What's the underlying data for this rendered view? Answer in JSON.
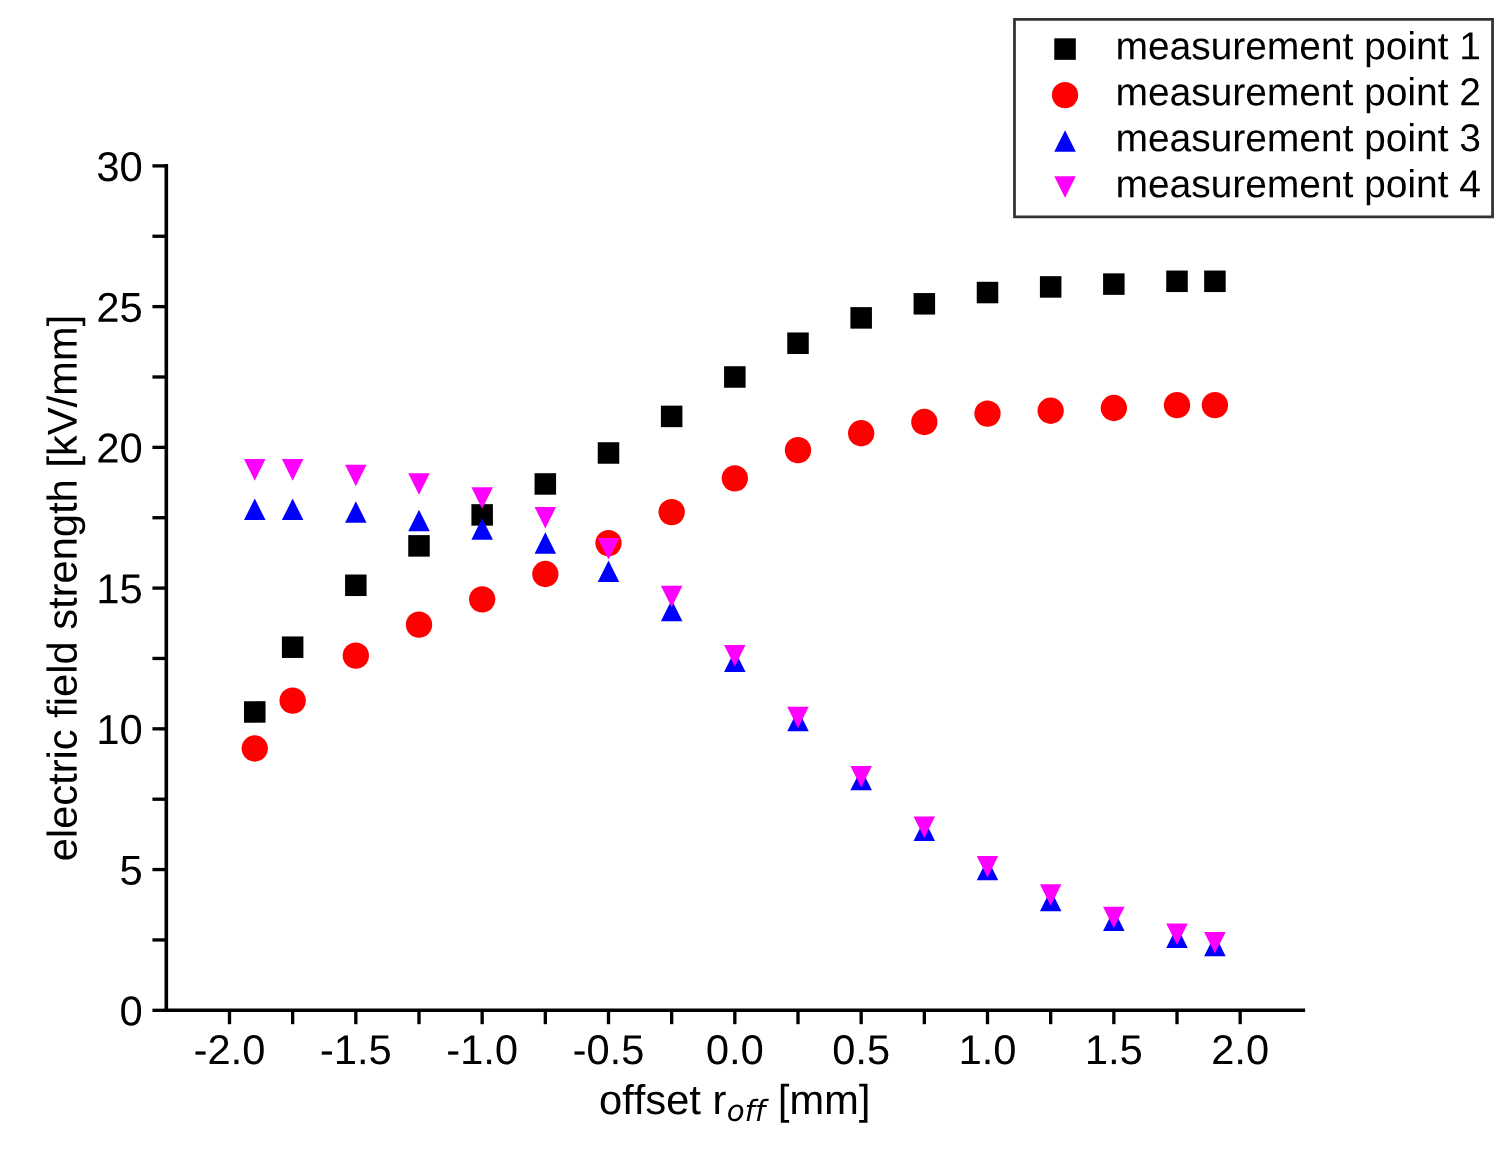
{
  "chart_data": {
    "type": "scatter",
    "xlabel": "offset r$_{off}$ [mm]",
    "ylabel": "electric field strength [kV/mm]",
    "x": [
      -1.9,
      -1.75,
      -1.5,
      -1.25,
      -1.0,
      -0.75,
      -0.5,
      -0.25,
      0,
      0.25,
      0.5,
      0.75,
      1.0,
      1.25,
      1.5,
      1.75,
      1.9
    ],
    "series": [
      {
        "name": "measurement point 1",
        "color": "#000000",
        "marker": "square",
        "values": [
          10.6,
          12.9,
          15.1,
          16.5,
          17.6,
          18.7,
          19.8,
          21.1,
          22.5,
          23.7,
          24.6,
          25.1,
          25.5,
          25.7,
          25.8,
          25.9,
          25.9
        ]
      },
      {
        "name": "measurement point 2",
        "color": "#ff0000",
        "marker": "circle",
        "values": [
          9.3,
          11.0,
          12.6,
          13.7,
          14.6,
          15.5,
          16.6,
          17.7,
          18.9,
          19.9,
          20.5,
          20.9,
          21.2,
          21.3,
          21.4,
          21.5,
          21.5
        ]
      },
      {
        "name": "measurement point 3",
        "color": "#0000ff",
        "marker": "triangle",
        "values": [
          17.8,
          17.8,
          17.7,
          17.4,
          17.1,
          16.6,
          15.6,
          14.2,
          12.4,
          10.3,
          8.2,
          6.4,
          5.0,
          3.9,
          3.2,
          2.6,
          2.3
        ]
      },
      {
        "name": "measurement point 4",
        "color": "#ff00ff",
        "marker": "triangle_down",
        "values": [
          19.2,
          19.2,
          19.0,
          18.7,
          18.2,
          17.5,
          16.4,
          14.7,
          12.6,
          10.4,
          8.3,
          6.5,
          5.1,
          4.1,
          3.3,
          2.7,
          2.4
        ]
      }
    ],
    "xlim": [
      -2.25,
      2.25
    ],
    "xticks": [
      {
        "value": -2.0,
        "label": "-2.0"
      },
      {
        "value": -1.75,
        "label": null
      },
      {
        "value": -1.5,
        "label": "-1.5"
      },
      {
        "value": -1.25,
        "label": null
      },
      {
        "value": -1.0,
        "label": "-1.0"
      },
      {
        "value": -0.75,
        "label": null
      },
      {
        "value": -0.5,
        "label": "-0.5"
      },
      {
        "value": -0.25,
        "label": null
      },
      {
        "value": 0,
        "label": "0.0"
      },
      {
        "value": 0.25,
        "label": null
      },
      {
        "value": 0.5,
        "label": "0.5"
      },
      {
        "value": 0.75,
        "label": null
      },
      {
        "value": 1.0,
        "label": "1.0"
      },
      {
        "value": 1.25,
        "label": null
      },
      {
        "value": 1.5,
        "label": "1.5"
      },
      {
        "value": 1.75,
        "label": null
      },
      {
        "value": 2.0,
        "label": "2.0"
      }
    ],
    "ylim": [
      0,
      30
    ],
    "yticks": [
      0,
      {
        "value": 2.5,
        "label": null
      },
      5,
      {
        "value": 7.5,
        "label": null
      },
      10,
      {
        "value": 12.5,
        "label": null
      },
      15,
      {
        "value": 17.5,
        "label": null
      },
      20,
      {
        "value": 22.5,
        "label": null
      },
      25,
      {
        "value": 27.5,
        "label": null
      },
      30
    ],
    "grid": false,
    "legend": "top right"
  }
}
